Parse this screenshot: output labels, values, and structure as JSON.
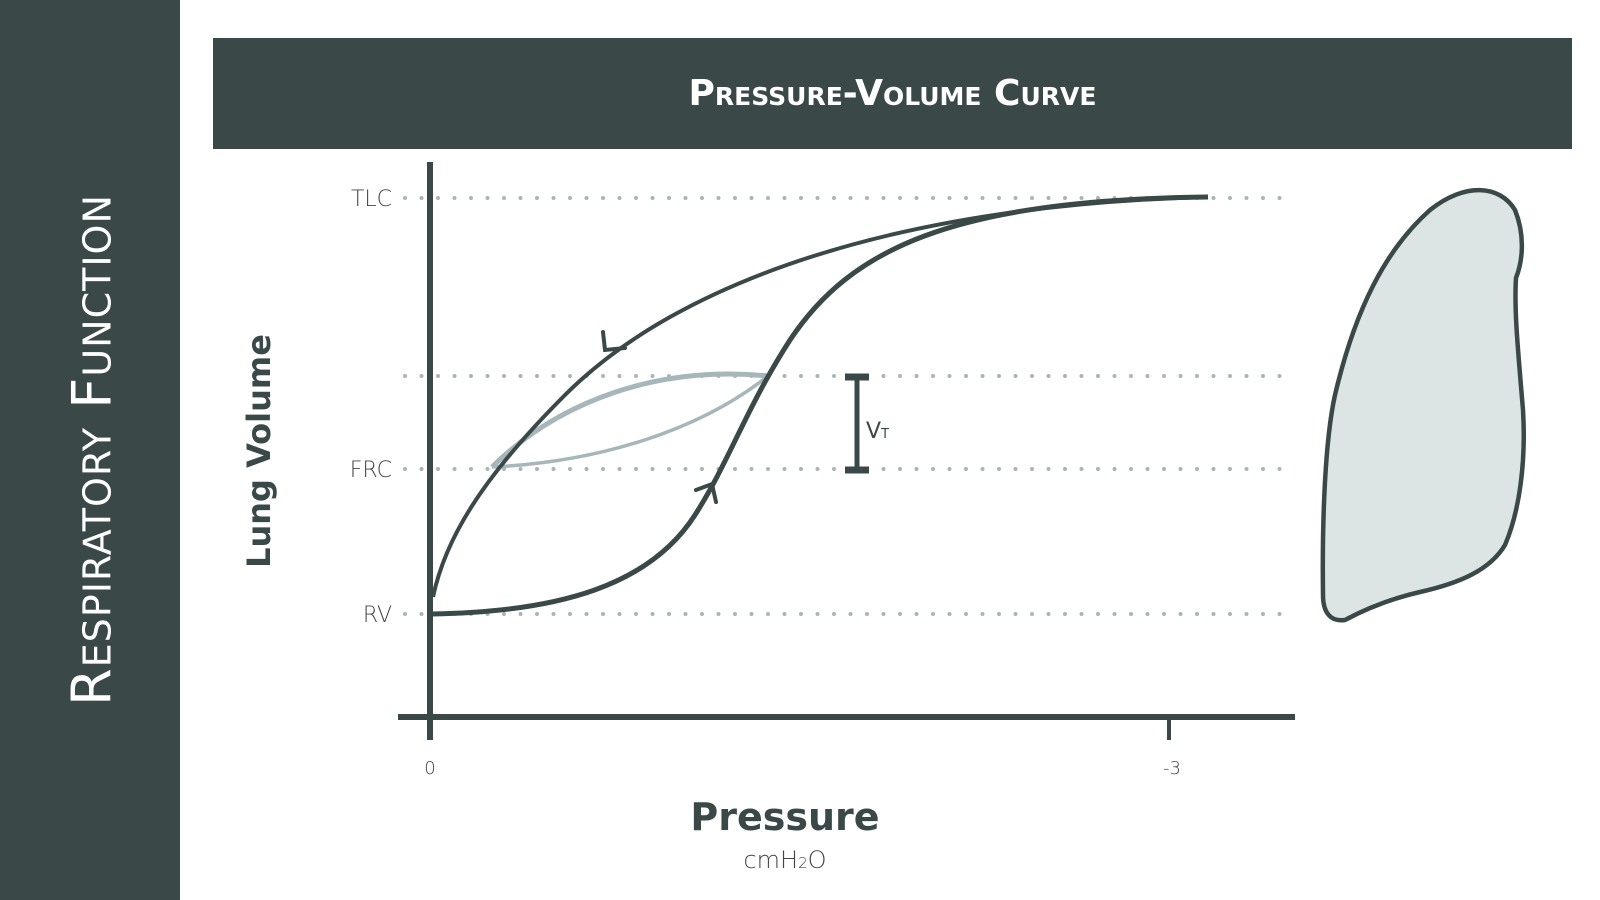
{
  "sidebar": {
    "title": "Respiratory Function"
  },
  "colors": {
    "dark": "#3b4848",
    "loop": "#a7b6ba",
    "lung_fill": "#dce4e4",
    "dots": "#a9b5b5"
  },
  "chart_data": {
    "type": "line",
    "title": "Pressure-Volume Curve",
    "xlabel": "Pressure",
    "xunit": {
      "main": "cmH",
      "sub": "2",
      "end": "O"
    },
    "ylabel": "Lung Volume",
    "xticks": [
      "0",
      "-3"
    ],
    "yticks": [
      "TLC",
      "FRC",
      "RV"
    ],
    "annotation": {
      "main": "V",
      "sub": "T"
    },
    "grid": "dotted horizontal lines at RV, FRC, end-inspiration, TLC",
    "series_description": [
      "inflation curve RV→TLC",
      "deflation curve TLC→RV",
      "tidal breathing loop FRC→FRC+VT"
    ]
  },
  "icons": {
    "lung": "lung-icon"
  }
}
